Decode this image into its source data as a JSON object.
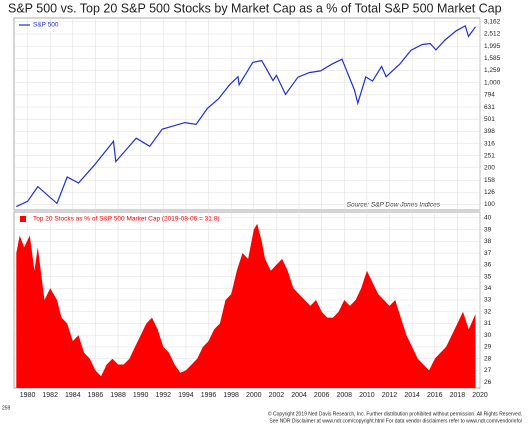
{
  "title": "S&P 500 vs. Top 20 S&P 500 Stocks by Market Cap as a % of Total S&P 500 Market Cap",
  "footer": [
    "© Copyright 2019 Ned Davis Research, Inc. Further distribution prohibited without permission. All Rights Reserved.",
    "See NDR Disclaimer at www.ndr.com/copyright.html  For data vendor disclaimers refer to www.ndr.com/vendorinfo/"
  ],
  "page_code": "259",
  "chart_data": [
    {
      "type": "line",
      "log": true,
      "grid": true,
      "legend": "top-left",
      "source": "Source:  S&P Dow Jones Indices",
      "xlim": [
        1978.8,
        2020.0
      ],
      "ylim": [
        90,
        3400
      ],
      "yticks": [
        100,
        126,
        158,
        200,
        251,
        316,
        398,
        501,
        631,
        794,
        {
          "value": 1000,
          "label": "1,000"
        },
        {
          "value": 1259,
          "label": "1,259"
        },
        {
          "value": 1585,
          "label": "1,585"
        },
        {
          "value": 1995,
          "label": "1,995"
        },
        {
          "value": 2512,
          "label": "2,512"
        },
        {
          "value": 3162,
          "label": "3,162"
        }
      ],
      "x": [
        1979.0,
        1980.0,
        1980.9,
        1982.6,
        1983.5,
        1984.5,
        1985.9,
        1987.6,
        1987.8,
        1989.6,
        1990.8,
        1991.9,
        1993.9,
        1994.9,
        1995.9,
        1996.9,
        1997.9,
        1998.6,
        1998.7,
        1999.9,
        2000.7,
        2001.7,
        2002.0,
        2002.8,
        2003.9,
        2004.9,
        2005.9,
        2006.9,
        2007.8,
        2008.9,
        2009.2,
        2009.9,
        2010.5,
        2011.3,
        2011.7,
        2012.9,
        2013.9,
        2014.9,
        2015.6,
        2016.1,
        2016.9,
        2017.9,
        2018.7,
        2018.98,
        2019.6
      ],
      "series": [
        {
          "name": "S&P 500",
          "color": "#1f2fd6",
          "values": [
            96,
            106,
            140,
            102,
            168,
            150,
            210,
            330,
            225,
            350,
            300,
            415,
            470,
            455,
            615,
            740,
            970,
            1120,
            960,
            1469,
            1520,
            1040,
            1150,
            800,
            1110,
            1210,
            1250,
            1420,
            1560,
            870,
            680,
            1115,
            1030,
            1360,
            1120,
            1420,
            1850,
            2060,
            2100,
            1860,
            2240,
            2670,
            2930,
            2400,
            2880
          ]
        }
      ]
    },
    {
      "type": "area",
      "grid": true,
      "legend": "top-left",
      "xlim": [
        1978.8,
        2020.0
      ],
      "xticks": [
        1980,
        1982,
        1984,
        1986,
        1988,
        1990,
        1992,
        1994,
        1996,
        1998,
        2000,
        2002,
        2004,
        2006,
        2008,
        2010,
        2012,
        2014,
        2016,
        2018,
        2020
      ],
      "ylim": [
        25.5,
        40.5
      ],
      "yticks": [
        26,
        27,
        28,
        29,
        30,
        31,
        32,
        33,
        34,
        35,
        36,
        37,
        38,
        39,
        40
      ],
      "x": [
        1979.0,
        1979.3,
        1979.7,
        1980.2,
        1980.6,
        1980.9,
        1981.5,
        1982.0,
        1982.6,
        1983.0,
        1983.5,
        1984.0,
        1984.5,
        1985.0,
        1985.5,
        1986.0,
        1986.5,
        1987.0,
        1987.5,
        1988.0,
        1988.5,
        1989.0,
        1989.5,
        1990.0,
        1990.5,
        1991.0,
        1991.5,
        1992.0,
        1992.5,
        1993.0,
        1993.5,
        1994.0,
        1994.5,
        1995.0,
        1995.5,
        1996.0,
        1996.5,
        1997.0,
        1997.5,
        1998.0,
        1998.5,
        1999.0,
        1999.5,
        2000.0,
        2000.3,
        2000.7,
        2001.0,
        2001.5,
        2002.0,
        2002.5,
        2003.0,
        2003.5,
        2004.0,
        2004.5,
        2005.0,
        2005.5,
        2006.0,
        2006.5,
        2007.0,
        2007.5,
        2008.0,
        2008.5,
        2009.0,
        2009.5,
        2010.0,
        2010.5,
        2011.0,
        2011.5,
        2012.0,
        2012.5,
        2013.0,
        2013.5,
        2014.0,
        2014.5,
        2015.0,
        2015.5,
        2016.0,
        2016.5,
        2017.0,
        2017.5,
        2018.0,
        2018.5,
        2019.0,
        2019.6
      ],
      "series": [
        {
          "name": "Top 20 Stocks as % of S&P 500 Market Cap (2019-08-06 = 31.8)",
          "color": "#ff0000",
          "values": [
            37,
            38.5,
            37.5,
            38.5,
            35.5,
            37.5,
            33,
            34,
            33,
            31.5,
            31,
            29.5,
            30,
            28.5,
            28,
            27,
            26.5,
            27.5,
            28,
            27.5,
            27.5,
            28,
            29,
            30,
            31,
            31.5,
            30.5,
            29,
            28.5,
            27.5,
            26.8,
            27,
            27.5,
            28,
            29,
            29.5,
            30.5,
            31,
            33,
            33.5,
            35.5,
            37,
            36.5,
            39,
            39.5,
            38,
            36.5,
            35.5,
            36,
            36.5,
            35.5,
            34,
            33.5,
            33,
            32.5,
            33,
            32,
            31.5,
            31.5,
            32,
            33,
            32.5,
            33,
            34,
            35.5,
            34.5,
            33.5,
            33,
            32.5,
            33,
            31.5,
            30,
            29,
            28,
            27.5,
            27,
            28,
            28.5,
            29,
            30,
            31,
            32,
            30.5,
            31.8
          ]
        }
      ]
    }
  ]
}
